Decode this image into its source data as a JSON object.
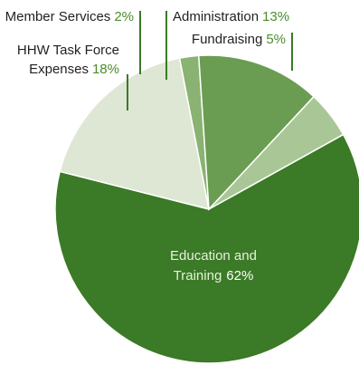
{
  "chart_data": {
    "type": "pie",
    "title": "",
    "start_category": "Fundraising",
    "direction": "clockwise",
    "categories": [
      "Fundraising",
      "Education and Training",
      "HHW Task Force Expenses",
      "Member Services",
      "Administration"
    ],
    "values": [
      5,
      62,
      18,
      2,
      13
    ],
    "labels": [
      {
        "name": "Fundraising",
        "pct": "5%"
      },
      {
        "name": [
          "Education and",
          "Training"
        ],
        "pct": "62%"
      },
      {
        "name": [
          "HHW Task Force",
          "Expenses"
        ],
        "pct": "18%"
      },
      {
        "name": "Member Services",
        "pct": "2%"
      },
      {
        "name": "Administration",
        "pct": "13%"
      }
    ],
    "colors": [
      "#a9c796",
      "#3b7a26",
      "#dde7d3",
      "#8ab272",
      "#6a9d51"
    ],
    "slice_border": "#ffffff",
    "leader_line_color": "#3b7a26"
  }
}
